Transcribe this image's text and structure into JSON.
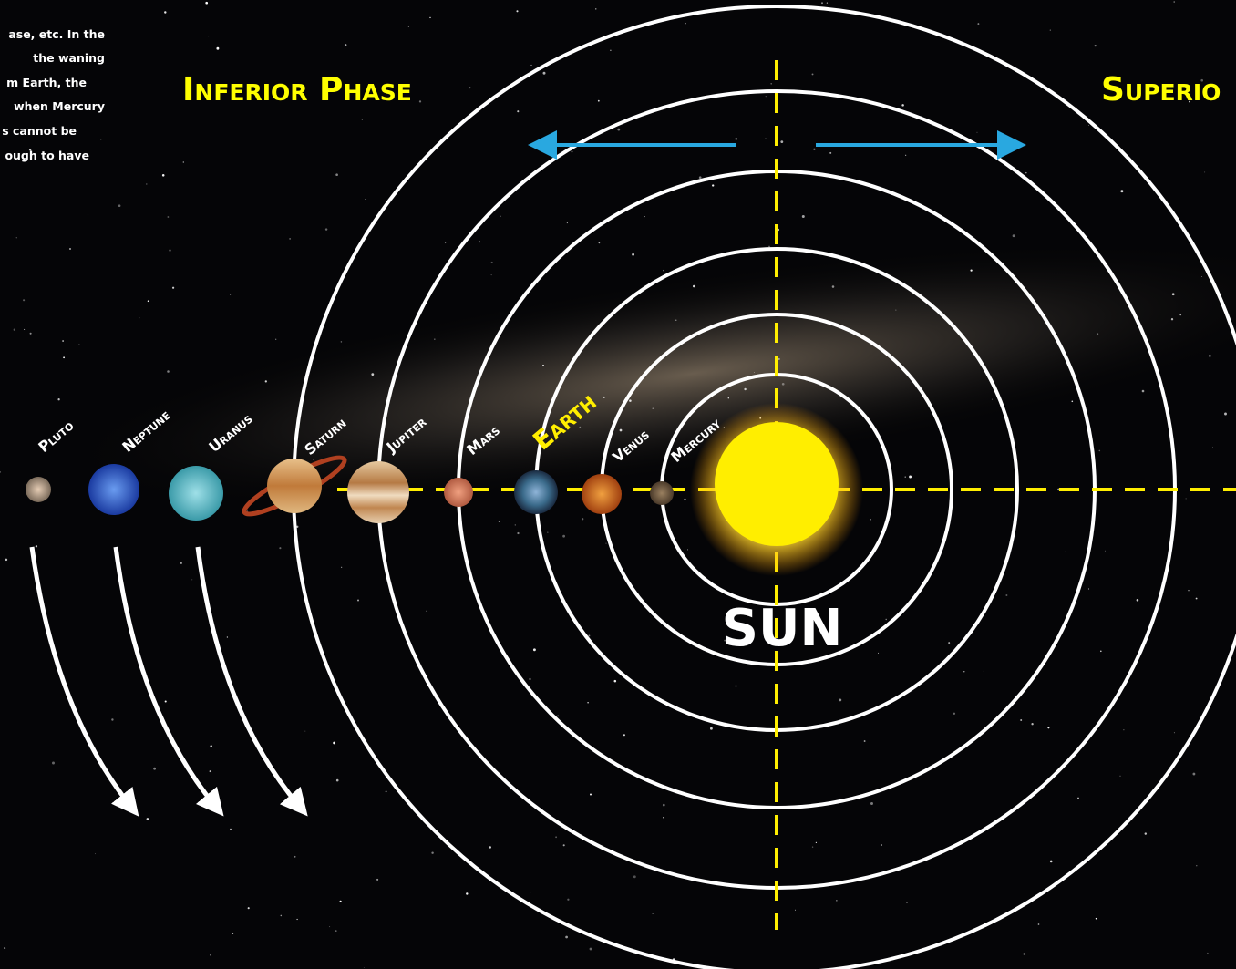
{
  "note_lines": [
    "ase, etc.  In the",
    "the waning",
    "m Earth, the",
    "when Mercury",
    "s cannot be",
    "ough to have"
  ],
  "headings": {
    "left": "Inferior Phase",
    "right": "Superio"
  },
  "planets": [
    "Pluto",
    "Neptune",
    "Uranus",
    "Saturn",
    "Jupiter",
    "Mars",
    "Earth",
    "Venus",
    "Mercury"
  ],
  "sun": "SUN"
}
